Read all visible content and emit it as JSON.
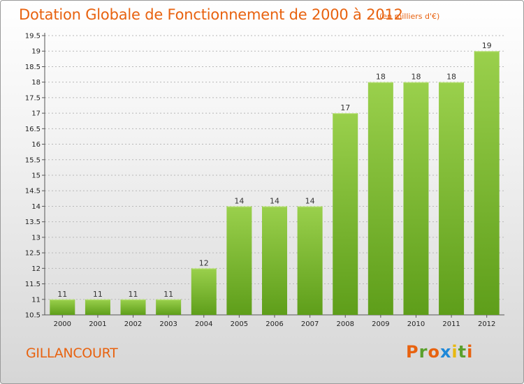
{
  "header": {
    "title": "Dotation Globale de Fonctionnement de 2000 à 2012",
    "subtitle": "(en milliers d'€)"
  },
  "footer": {
    "commune": "GILLANCOURT",
    "logo_letters": [
      "P",
      "r",
      "o",
      "x",
      "i",
      "t",
      "i"
    ],
    "logo_colors": [
      "#e8620f",
      "#5aa02c",
      "#e8620f",
      "#1e88d8",
      "#e8b80f",
      "#5aa02c",
      "#e8620f"
    ]
  },
  "chart_data": {
    "type": "bar",
    "categories": [
      "2000",
      "2001",
      "2002",
      "2003",
      "2004",
      "2005",
      "2006",
      "2007",
      "2008",
      "2009",
      "2010",
      "2011",
      "2012"
    ],
    "values": [
      11,
      11,
      11,
      11,
      12,
      14,
      14,
      14,
      17,
      18,
      18,
      18,
      19
    ],
    "ylim": [
      10.5,
      19.5
    ],
    "yticks": [
      "10.5",
      "11",
      "11.5",
      "12",
      "12.5",
      "13",
      "13.5",
      "14",
      "14.5",
      "15",
      "15.5",
      "16",
      "16.5",
      "17",
      "17.5",
      "18",
      "18.5",
      "19",
      "19.5"
    ],
    "grid": true,
    "bar_color_top": "#9ad04c",
    "bar_color_bottom": "#5e9e1a"
  }
}
